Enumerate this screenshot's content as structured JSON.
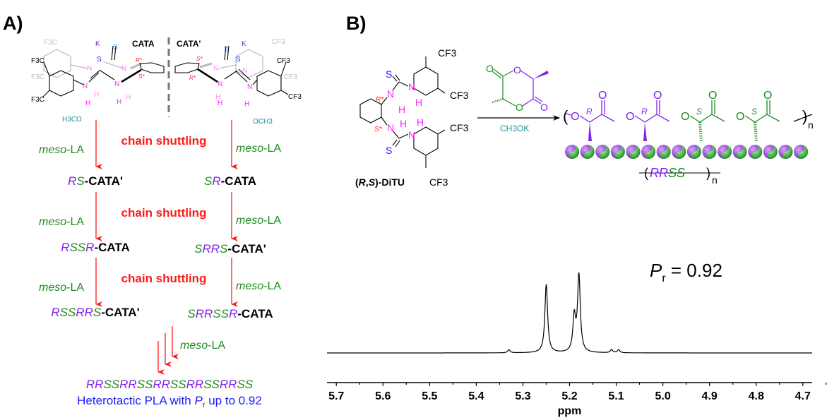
{
  "colors": {
    "purple": "#8020f0",
    "green": "#1e8c1e",
    "red": "#ff1a1a",
    "magenta": "#ff22ff",
    "teal": "#1a9090",
    "blue": "#1a1aff",
    "sblue": "#2b8cff",
    "grey": "#bbbbbb"
  },
  "panel_a": {
    "label": "A)",
    "cata": "CATA",
    "cata_prime": "CATA'",
    "structure_labels": {
      "k": "K",
      "s": "S",
      "n": "N",
      "h": "H",
      "cf3": "CF3",
      "f3c": "F3C",
      "h3co": "H3CO",
      "och3": "OCH3",
      "r_star": "R*",
      "s_star": "S*"
    },
    "shuttling": "chain shuttling",
    "meso": "meso",
    "la": "-LA",
    "left_steps": [
      {
        "parts": [
          [
            "R",
            "purple"
          ],
          [
            "S",
            "green"
          ]
        ],
        "suffix": "-CATA'"
      },
      {
        "parts": [
          [
            "R",
            "purple"
          ],
          [
            "SS",
            "green"
          ],
          [
            "R",
            "purple"
          ]
        ],
        "suffix": "-CATA"
      },
      {
        "parts": [
          [
            "R",
            "purple"
          ],
          [
            "SS",
            "green"
          ],
          [
            "RR",
            "purple"
          ],
          [
            "S",
            "green"
          ]
        ],
        "suffix": "-CATA'"
      }
    ],
    "right_steps": [
      {
        "parts": [
          [
            "S",
            "green"
          ],
          [
            "R",
            "purple"
          ]
        ],
        "suffix": "-CATA"
      },
      {
        "parts": [
          [
            "S",
            "green"
          ],
          [
            "RR",
            "purple"
          ],
          [
            "S",
            "green"
          ]
        ],
        "suffix": "-CATA'"
      },
      {
        "parts": [
          [
            "S",
            "green"
          ],
          [
            "RR",
            "purple"
          ],
          [
            "SS",
            "green"
          ],
          [
            "R",
            "purple"
          ]
        ],
        "suffix": "-CATA"
      }
    ],
    "sequence": [
      [
        "RR",
        "purple"
      ],
      [
        "SS",
        "green"
      ],
      [
        "RR",
        "purple"
      ],
      [
        "SS",
        "green"
      ],
      [
        "RR",
        "purple"
      ],
      [
        "SS",
        "green"
      ],
      [
        "RR",
        "purple"
      ],
      [
        "SS",
        "green"
      ],
      [
        "RR",
        "purple"
      ],
      [
        "SS",
        "green"
      ]
    ],
    "result_prefix": "Heterotactic PLA with ",
    "result_p": "P",
    "result_sub": "r",
    "result_suffix": " up to 0.92"
  },
  "panel_b": {
    "label": "B)",
    "catalyst_name_open": "(",
    "catalyst_name_r": "R",
    "catalyst_name_comma": ",",
    "catalyst_name_s": "S",
    "catalyst_name_rest": ")-DiTU",
    "reagent": "CH3OK",
    "polymer_stereo": [
      "R",
      "R",
      "S",
      "S"
    ],
    "repeat_label": "RRSS",
    "repeat_n": "n",
    "o": "O",
    "pr_label_p": "P",
    "pr_label_sub": "r",
    "pr_label_value": " = 0.92"
  },
  "chart_data": {
    "type": "line",
    "xlabel": "ppm",
    "xlim": [
      5.72,
      4.68
    ],
    "x_reversed": true,
    "xticks": [
      "5.7",
      "5.6",
      "5.5",
      "5.4",
      "5.3",
      "5.2",
      "5.1",
      "5.0",
      "4.9",
      "4.8",
      "4.7"
    ],
    "annotation": "Pr = 0.92",
    "peaks": [
      {
        "ppm": 5.33,
        "relative_intensity": 0.04
      },
      {
        "ppm": 5.25,
        "relative_intensity": 0.89
      },
      {
        "ppm": 5.19,
        "relative_intensity": 0.45
      },
      {
        "ppm": 5.18,
        "relative_intensity": 1.0
      },
      {
        "ppm": 5.11,
        "relative_intensity": 0.04
      },
      {
        "ppm": 5.095,
        "relative_intensity": 0.04
      }
    ]
  }
}
